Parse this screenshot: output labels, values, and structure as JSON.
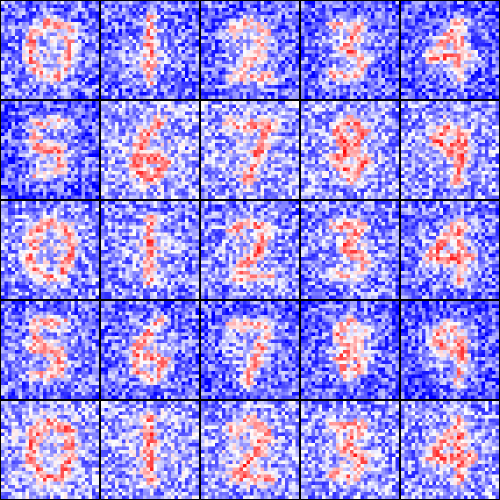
{
  "grid": {
    "rows": 5,
    "cols": 5,
    "colors": {
      "negative": "#0000ff",
      "neutral": "#ffffff",
      "positive": "#ff0000",
      "border": "#000000"
    },
    "panels": [
      {
        "row": 0,
        "col": 0,
        "digit": "0"
      },
      {
        "row": 0,
        "col": 1,
        "digit": "1"
      },
      {
        "row": 0,
        "col": 2,
        "digit": "2"
      },
      {
        "row": 0,
        "col": 3,
        "digit": "3"
      },
      {
        "row": 0,
        "col": 4,
        "digit": "4"
      },
      {
        "row": 1,
        "col": 0,
        "digit": "5"
      },
      {
        "row": 1,
        "col": 1,
        "digit": "6"
      },
      {
        "row": 1,
        "col": 2,
        "digit": "7"
      },
      {
        "row": 1,
        "col": 3,
        "digit": "8"
      },
      {
        "row": 1,
        "col": 4,
        "digit": "9"
      },
      {
        "row": 2,
        "col": 0,
        "digit": "0"
      },
      {
        "row": 2,
        "col": 1,
        "digit": "1"
      },
      {
        "row": 2,
        "col": 2,
        "digit": "2"
      },
      {
        "row": 2,
        "col": 3,
        "digit": "3"
      },
      {
        "row": 2,
        "col": 4,
        "digit": "4"
      },
      {
        "row": 3,
        "col": 0,
        "digit": "5"
      },
      {
        "row": 3,
        "col": 1,
        "digit": "6"
      },
      {
        "row": 3,
        "col": 2,
        "digit": "7"
      },
      {
        "row": 3,
        "col": 3,
        "digit": "8"
      },
      {
        "row": 3,
        "col": 4,
        "digit": "9"
      },
      {
        "row": 4,
        "col": 0,
        "digit": "0"
      },
      {
        "row": 4,
        "col": 1,
        "digit": "1"
      },
      {
        "row": 4,
        "col": 2,
        "digit": "2"
      },
      {
        "row": 4,
        "col": 3,
        "digit": "3"
      },
      {
        "row": 4,
        "col": 4,
        "digit": "4"
      }
    ]
  }
}
